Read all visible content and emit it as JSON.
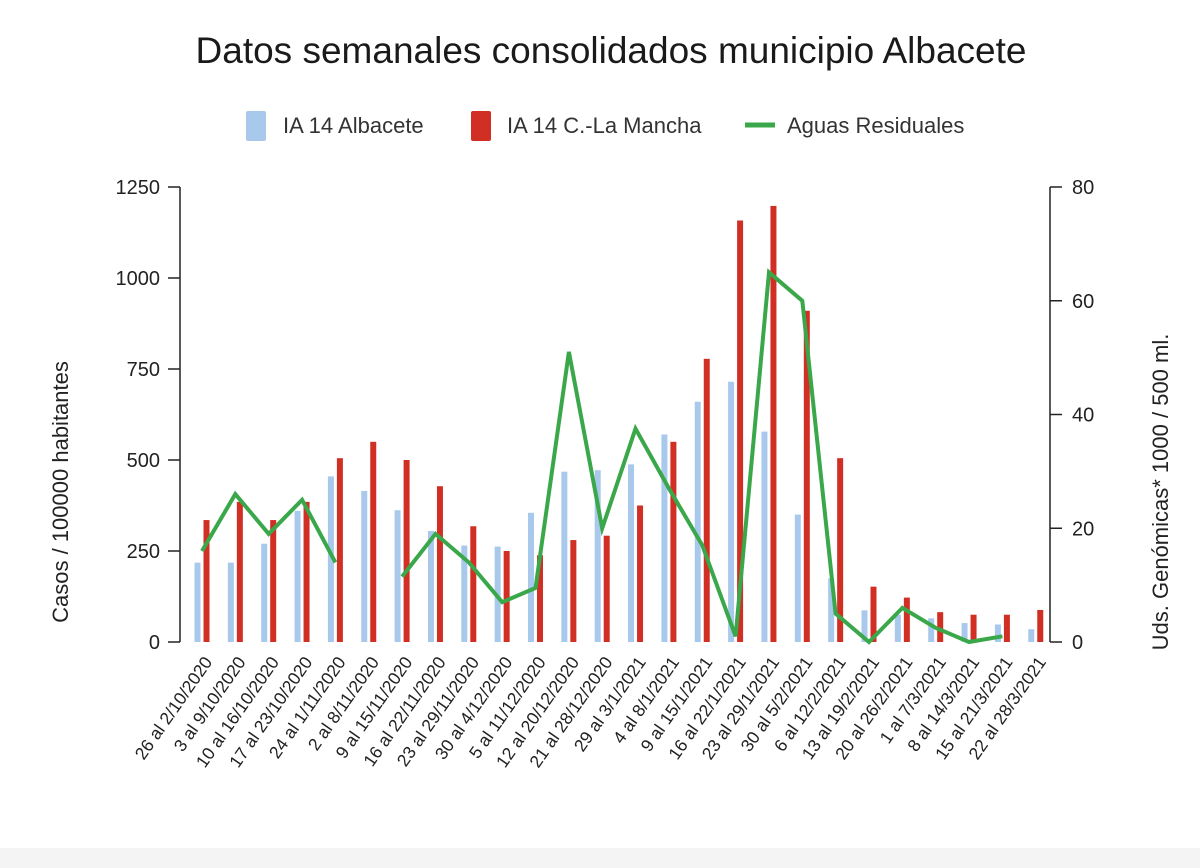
{
  "chart_data": {
    "type": "bar",
    "title": "Datos semanales consolidados municipio Albacete",
    "ylabel_left": "Casos / 100000 habitantes",
    "ylabel_right": "Uds. Genómicas* 1000 / 500 ml.",
    "ylim_left": [
      0,
      1250
    ],
    "ylim_right": [
      0,
      80
    ],
    "yticks_left": [
      "0",
      "250",
      "500",
      "750",
      "1000",
      "1250"
    ],
    "yticks_right": [
      "0",
      "20",
      "40",
      "60",
      "80"
    ],
    "legend_position": "top-center",
    "grid": false,
    "categories": [
      "26 al 2/10/2020",
      "3 al 9/10/2020",
      "10 al 16/10/2020",
      "17 al 23/10/2020",
      "24 al 1/11/2020",
      "2 al 8/11/2020",
      "9 al 15/11/2020",
      "16 al 22/11/2020",
      "23 al 29/11/2020",
      "30 al 4/12/2020",
      "5 al 11/12/2020",
      "12 al 20/12/2020",
      "21 al 28/12/2020",
      "29 al 3/1/2021",
      "4 al 8/1/2021",
      "9 al 15/1/2021",
      "16 al 22/1/2021",
      "23 al 29/1/2021",
      "30 al 5/2/2021",
      "6 al 12/2/2021",
      "13 al 19/2/2021",
      "20 al 26/2/2021",
      "1 al 7/3/2021",
      "8 al 14/3/2021",
      "15 al 21/3/2021",
      "22 al 28/3/2021"
    ],
    "series": [
      {
        "name": "IA 14 Albacete",
        "type": "bar",
        "axis": "left",
        "color": "#a8c8ec",
        "values": [
          218,
          218,
          270,
          360,
          455,
          415,
          362,
          305,
          265,
          262,
          355,
          468,
          472,
          488,
          570,
          660,
          715,
          578,
          350,
          175,
          87,
          75,
          65,
          52,
          48,
          35
        ]
      },
      {
        "name": "IA 14 C.-La Mancha",
        "type": "bar",
        "axis": "left",
        "color": "#d12f24",
        "values": [
          335,
          385,
          335,
          385,
          505,
          550,
          500,
          428,
          318,
          250,
          238,
          280,
          292,
          375,
          550,
          778,
          1158,
          1198,
          910,
          505,
          152,
          122,
          82,
          75,
          75,
          88
        ]
      },
      {
        "name": "Aguas Residuales",
        "type": "line",
        "axis": "right",
        "color": "#3aa84a",
        "segments": [
          {
            "start": 0,
            "values": [
              16,
              26,
              19,
              25,
              14
            ]
          },
          {
            "start": 6,
            "values": [
              11.5,
              19,
              14,
              7,
              9.5,
              51,
              20,
              37.5,
              27,
              17,
              1,
              65,
              60,
              5,
              0,
              6,
              2.5,
              0,
              1
            ]
          }
        ]
      }
    ]
  }
}
